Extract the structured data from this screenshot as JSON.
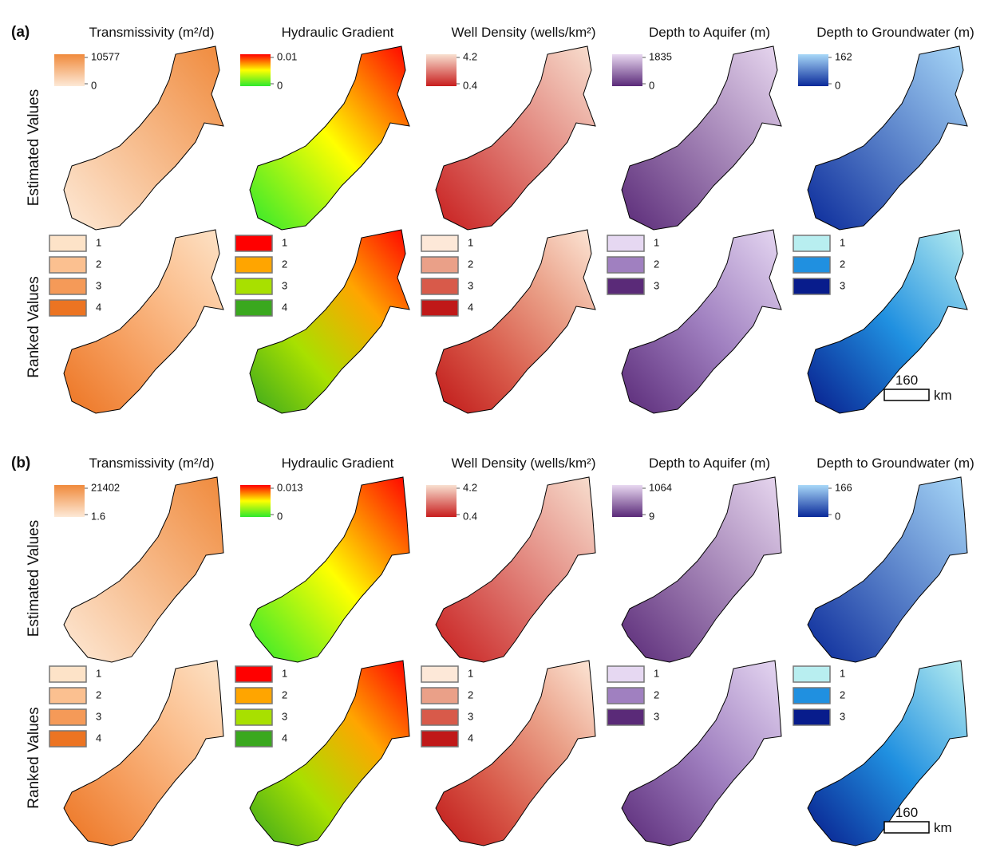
{
  "panels": [
    {
      "label": "(a)",
      "row_labels": [
        "Estimated Values",
        "Ranked Values"
      ],
      "columns": [
        {
          "title": "Transmissivity (m²/d)",
          "estimated_legend": {
            "max": "10577",
            "min": "0",
            "colors": [
              "#f08a3c",
              "#fde9d6"
            ]
          },
          "ranked_legend": {
            "classes": [
              "1",
              "2",
              "3",
              "4"
            ],
            "colors": [
              "#fde3c8",
              "#fbc090",
              "#f59a58",
              "#ec7422"
            ]
          }
        },
        {
          "title": "Hydraulic Gradient",
          "estimated_legend": {
            "max": "0.01",
            "min": "0",
            "colors": [
              "#ff0000",
              "#ffff00",
              "#2ee82e"
            ]
          },
          "ranked_legend": {
            "classes": [
              "1",
              "2",
              "3",
              "4"
            ],
            "colors": [
              "#ff0000",
              "#ffa500",
              "#a8e000",
              "#3aa81e"
            ]
          }
        },
        {
          "title": "Well Density (wells/km²)",
          "estimated_legend": {
            "max": "4.2",
            "min": "0.4",
            "colors": [
              "#f8e0d0",
              "#c81e1e"
            ]
          },
          "ranked_legend": {
            "classes": [
              "1",
              "2",
              "3",
              "4"
            ],
            "colors": [
              "#fde8d8",
              "#eaa088",
              "#d85a4a",
              "#c01818"
            ]
          }
        },
        {
          "title": "Depth to Aquifer (m)",
          "estimated_legend": {
            "max": "1835",
            "min": "0",
            "colors": [
              "#e8d8f0",
              "#5a2a78"
            ]
          },
          "ranked_legend": {
            "classes": [
              "1",
              "2",
              "3"
            ],
            "colors": [
              "#e6d8f2",
              "#a080c0",
              "#5a2a78"
            ]
          }
        },
        {
          "title": "Depth to Groundwater (m)",
          "estimated_legend": {
            "max": "162",
            "min": "0",
            "colors": [
              "#a8d8f8",
              "#0a2a9a"
            ]
          },
          "ranked_legend": {
            "classes": [
              "1",
              "2",
              "3"
            ],
            "colors": [
              "#b8eef0",
              "#2090e0",
              "#081c8c"
            ]
          }
        }
      ],
      "scale_bar": {
        "distance": "160",
        "unit": "km"
      }
    },
    {
      "label": "(b)",
      "row_labels": [
        "Estimated Values",
        "Ranked Values"
      ],
      "columns": [
        {
          "title": "Transmissivity (m²/d)",
          "estimated_legend": {
            "max": "21402",
            "min": "1.6",
            "colors": [
              "#f08a3c",
              "#fde9d6"
            ]
          },
          "ranked_legend": {
            "classes": [
              "1",
              "2",
              "3",
              "4"
            ],
            "colors": [
              "#fde3c8",
              "#fbc090",
              "#f59a58",
              "#ec7422"
            ]
          }
        },
        {
          "title": "Hydraulic Gradient",
          "estimated_legend": {
            "max": "0.013",
            "min": "0",
            "colors": [
              "#ff0000",
              "#ffff00",
              "#2ee82e"
            ]
          },
          "ranked_legend": {
            "classes": [
              "1",
              "2",
              "3",
              "4"
            ],
            "colors": [
              "#ff0000",
              "#ffa500",
              "#a8e000",
              "#3aa81e"
            ]
          }
        },
        {
          "title": "Well Density (wells/km²)",
          "estimated_legend": {
            "max": "4.2",
            "min": "0.4",
            "colors": [
              "#f8e0d0",
              "#c81e1e"
            ]
          },
          "ranked_legend": {
            "classes": [
              "1",
              "2",
              "3",
              "4"
            ],
            "colors": [
              "#fde8d8",
              "#eaa088",
              "#d85a4a",
              "#c01818"
            ]
          }
        },
        {
          "title": "Depth to Aquifer (m)",
          "estimated_legend": {
            "max": "1064",
            "min": "9",
            "colors": [
              "#e8d8f0",
              "#5a2a78"
            ]
          },
          "ranked_legend": {
            "classes": [
              "1",
              "2",
              "3"
            ],
            "colors": [
              "#e6d8f2",
              "#a080c0",
              "#5a2a78"
            ]
          }
        },
        {
          "title": "Depth to Groundwater (m)",
          "estimated_legend": {
            "max": "166",
            "min": "0",
            "colors": [
              "#a8d8f8",
              "#0a2a9a"
            ]
          },
          "ranked_legend": {
            "classes": [
              "1",
              "2",
              "3"
            ],
            "colors": [
              "#b8eef0",
              "#2090e0",
              "#081c8c"
            ]
          }
        }
      ],
      "scale_bar": {
        "distance": "160",
        "unit": "km"
      }
    }
  ]
}
